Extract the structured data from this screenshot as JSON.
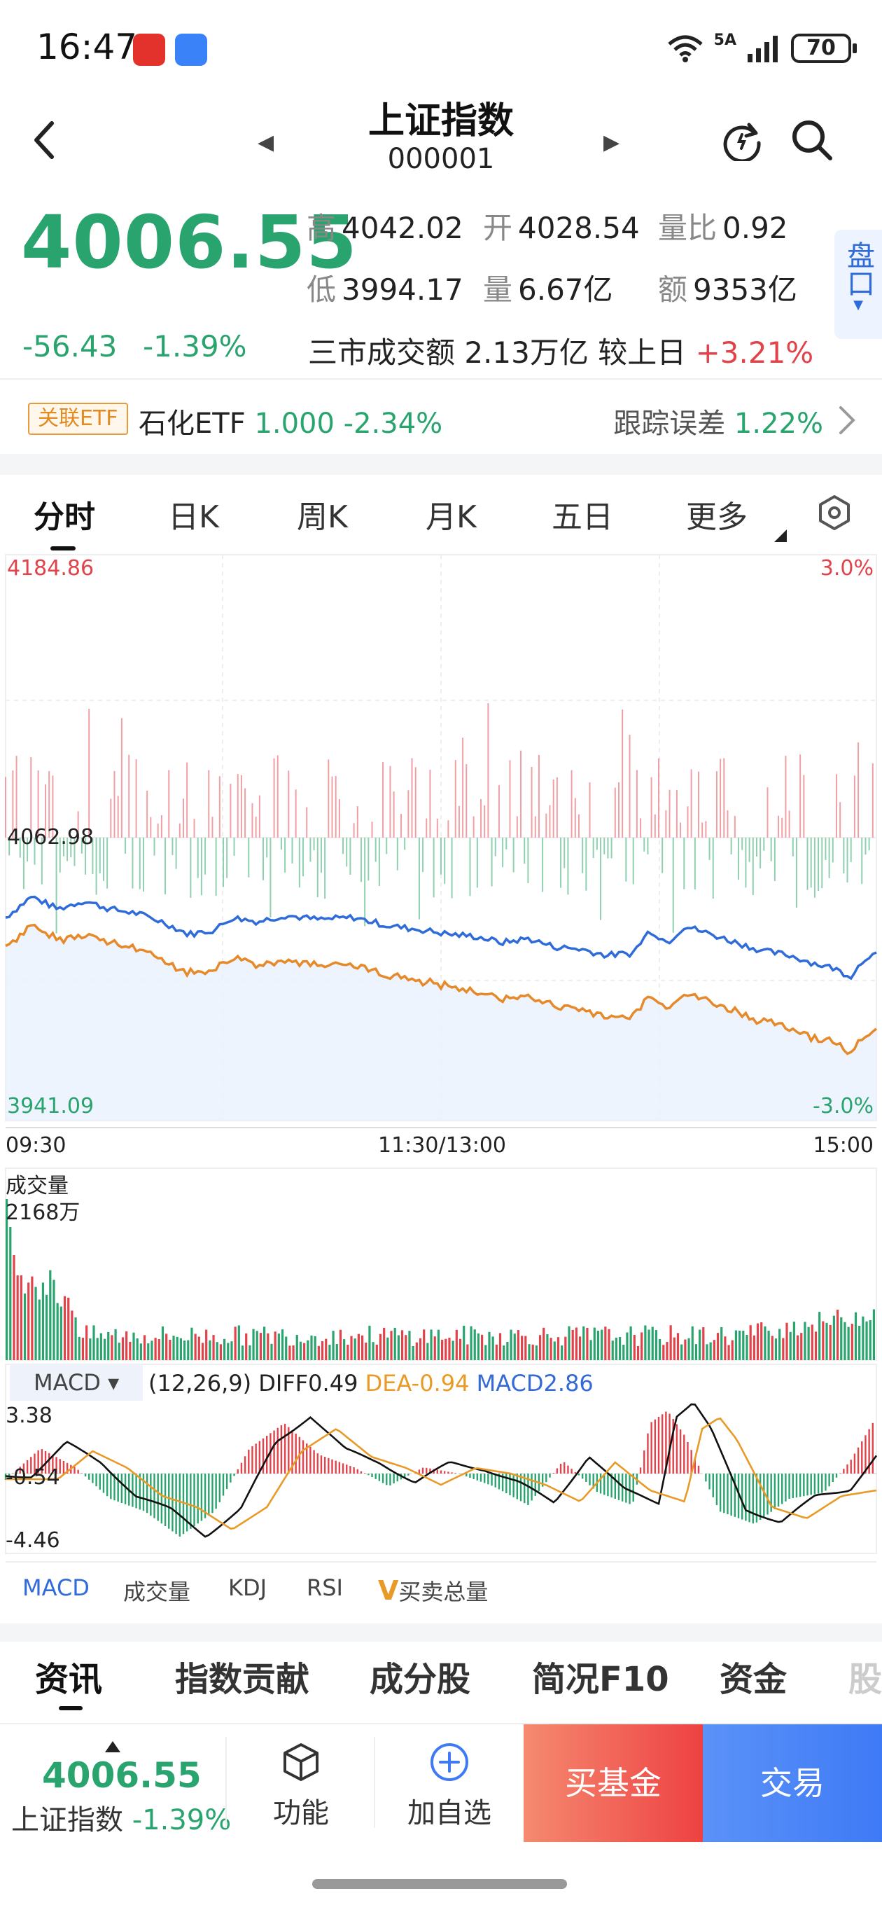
{
  "status": {
    "time": "16:47",
    "battery": "70",
    "network": "5A"
  },
  "header": {
    "title": "上证指数",
    "code": "000001"
  },
  "quote": {
    "price": "4006.55",
    "change": "-56.43",
    "change_pct": "-1.39%",
    "high_label": "高",
    "high": "4042.02",
    "open_label": "开",
    "open": "4028.54",
    "ratio_label": "量比",
    "ratio": "0.92",
    "low_label": "低",
    "low": "3994.17",
    "vol_label": "量",
    "vol": "6.67亿",
    "amount_label": "额",
    "amount": "9353亿",
    "turnover_text": "三市成交额 2.13万亿 较上日",
    "turnover_change": "+3.21%",
    "pankou": "盘口"
  },
  "etf": {
    "tag": "关联ETF",
    "name": "石化ETF",
    "price": "1.000",
    "pct": "-2.34%",
    "track_label": "跟踪误差",
    "track_value": "1.22%"
  },
  "period_tabs": [
    "分时",
    "日K",
    "周K",
    "月K",
    "五日",
    "更多"
  ],
  "intraday": {
    "high_price": "4184.86",
    "high_pct": "3.0%",
    "prev_close": "4062.98",
    "low_price": "3941.09",
    "low_pct": "-3.0%",
    "time_start": "09:30",
    "time_mid": "11:30/13:00",
    "time_end": "15:00"
  },
  "volume": {
    "label": "成交量",
    "max": "2168万"
  },
  "macd": {
    "label": "MACD",
    "params": "(12,26,9)",
    "diff": "DIFF0.49",
    "dea": "DEA-0.94",
    "macd": "MACD2.86",
    "y_top": "3.38",
    "y_mid": "-0.54",
    "y_bottom": "-4.46"
  },
  "indicator_tabs": [
    "MACD",
    "成交量",
    "KDJ",
    "RSI",
    "买卖总量"
  ],
  "news_tabs": [
    "资讯",
    "指数贡献",
    "成分股",
    "简况F10",
    "资金",
    "股"
  ],
  "bottom": {
    "price": "4006.55",
    "name": "上证指数",
    "pct": "-1.39%",
    "func_label": "功能",
    "add_label": "加自选",
    "buy_fund": "买基金",
    "trade": "交易"
  },
  "colors": {
    "up": "#e2424a",
    "down": "#2aa46e",
    "price_line": "#2f6bd9",
    "avg_line": "#e5892a",
    "accent": "#3f7af6"
  }
}
